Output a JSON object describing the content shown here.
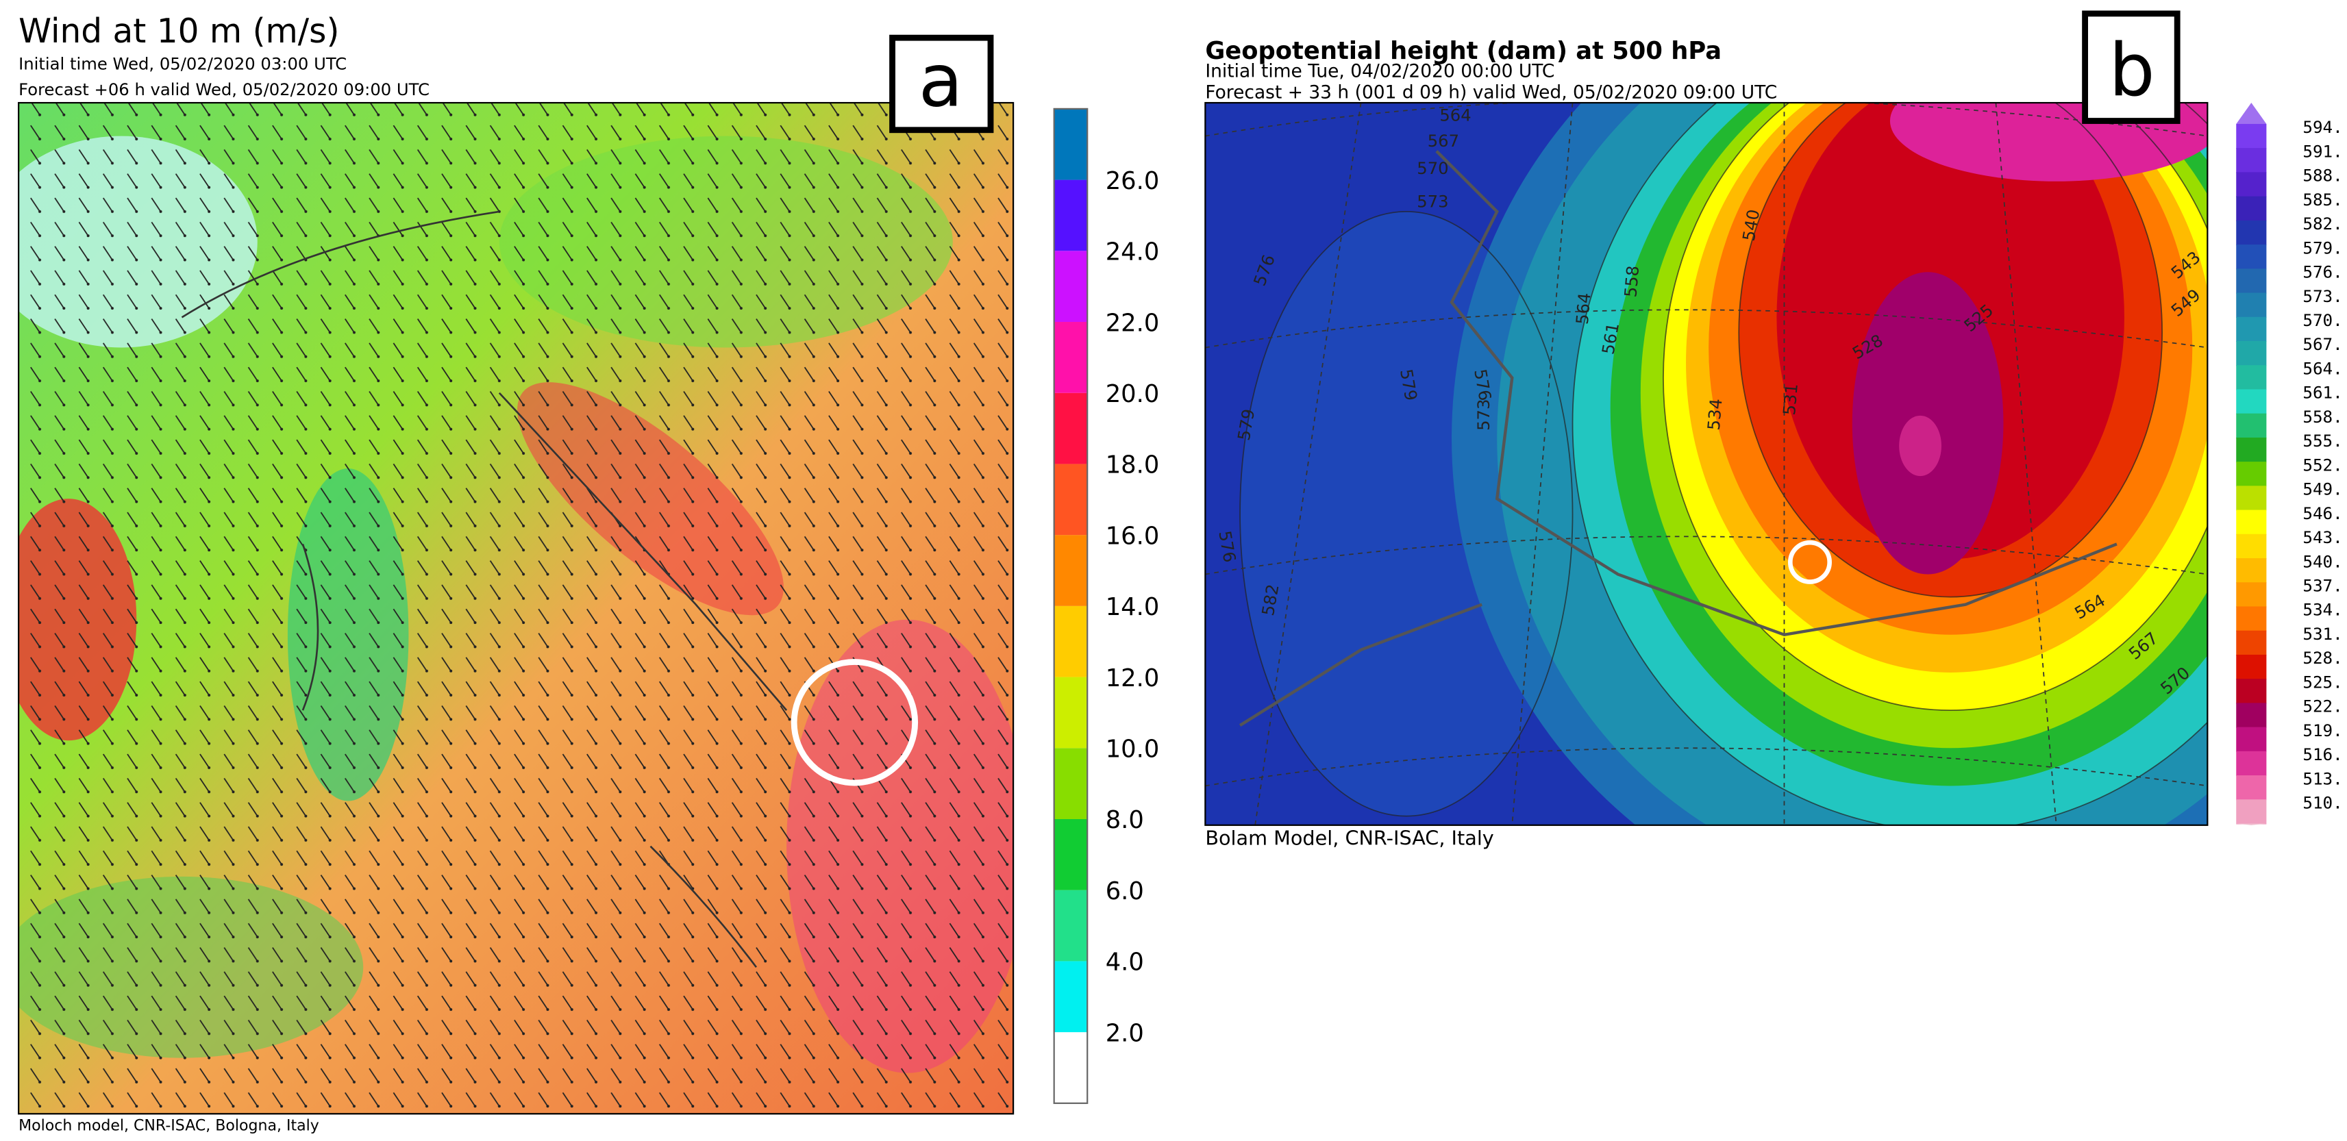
{
  "panel_a": {
    "label": "a",
    "title": "Wind at 10 m (m/s)",
    "initial_time": "Initial time  Wed, 05/02/2020 03:00 UTC",
    "forecast": "Forecast +06 h valid  Wed, 05/02/2020 09:00 UTC",
    "footer": "Moloch model, CNR-ISAC, Bologna, Italy",
    "colorbar": [
      "2.0",
      "4.0",
      "6.0",
      "8.0",
      "10.0",
      "12.0",
      "14.0",
      "16.0",
      "18.0",
      "20.0",
      "22.0",
      "24.0",
      "26.0"
    ]
  },
  "panel_b": {
    "label": "b",
    "title": "Geopotential height (dam) at 500 hPa",
    "initial_time": "Initial time  Tue, 04/02/2020  00:00 UTC",
    "forecast": "Forecast  +  33 h  (001 d 09 h)  valid Wed, 05/02/2020 09:00 UTC",
    "footer": "Bolam Model, CNR-ISAC, Italy",
    "colorbar": [
      "594.",
      "591.",
      "588.",
      "585.",
      "582.",
      "579.",
      "576.",
      "573.",
      "570.",
      "567.",
      "564.",
      "561.",
      "558.",
      "555.",
      "552.",
      "549.",
      "546.",
      "543.",
      "540.",
      "537.",
      "534.",
      "531.",
      "528.",
      "525.",
      "522.",
      "519.",
      "516.",
      "513.",
      "510."
    ],
    "contour_labels": [
      "564",
      "567",
      "570",
      "573",
      "576",
      "579",
      "579",
      "576",
      "582",
      "576",
      "573",
      "558",
      "564",
      "561",
      "534",
      "531",
      "528",
      "525",
      "540",
      "543",
      "549",
      "564",
      "567",
      "570"
    ]
  }
}
